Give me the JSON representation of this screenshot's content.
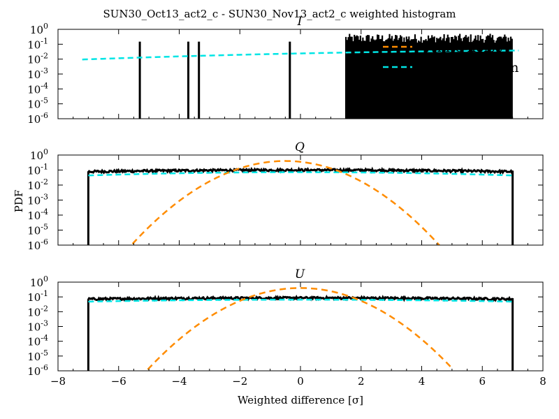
{
  "figure": {
    "suptitle": "SUN30_Oct13_act2_c - SUN30_Nov13_act2_c weighted histogram",
    "xlabel": "Weighted difference [σ]",
    "ylabel": "PDF"
  },
  "chart_data": [
    {
      "type": "line",
      "title": "I",
      "xlim": [
        -8,
        8
      ],
      "ylim": [
        1e-06,
        1
      ],
      "yscale": "log",
      "xticks": [
        "−8",
        "−6",
        "−4",
        "−2",
        "0",
        "2",
        "4",
        "6",
        "8"
      ],
      "yticks": [
        {
          "base": "10",
          "exp": "0"
        },
        {
          "base": "10",
          "exp": "-1"
        },
        {
          "base": "10",
          "exp": "-2"
        },
        {
          "base": "10",
          "exp": "-3"
        },
        {
          "base": "10",
          "exp": "-4"
        },
        {
          "base": "10",
          "exp": "-5"
        },
        {
          "base": "10",
          "exp": "-6"
        }
      ],
      "legend": {
        "position": "upper right",
        "entries": [
          "White noise",
          "Best Gaussian",
          "Data"
        ]
      },
      "series": [
        {
          "name": "Data",
          "color": "#000000",
          "kind": "spikes",
          "spike_height": 0.15,
          "spike_x": [
            -5.3,
            -3.7,
            -3.35,
            -0.35
          ],
          "dense_region": [
            1.5,
            7.0
          ]
        },
        {
          "name": "Best Gaussian",
          "color": "#00e5e5",
          "mu": 10.0,
          "sigma": 10.2,
          "xrange": [
            -7.2,
            7.2
          ]
        },
        {
          "name": "White noise",
          "color": "#ff8c00",
          "visible_in_panel": false
        }
      ]
    },
    {
      "type": "line",
      "title": "Q",
      "xlim": [
        -8,
        8
      ],
      "ylim": [
        1e-06,
        1
      ],
      "yscale": "log",
      "xticks": [
        "−8",
        "−6",
        "−4",
        "−2",
        "0",
        "2",
        "4",
        "6",
        "8"
      ],
      "yticks": [
        {
          "base": "10",
          "exp": "0"
        },
        {
          "base": "10",
          "exp": "-1"
        },
        {
          "base": "10",
          "exp": "-2"
        },
        {
          "base": "10",
          "exp": "-3"
        },
        {
          "base": "10",
          "exp": "-4"
        },
        {
          "base": "10",
          "exp": "-5"
        },
        {
          "base": "10",
          "exp": "-6"
        }
      ],
      "series": [
        {
          "name": "Data",
          "color": "#000000",
          "kind": "noisy",
          "mu": 0.0,
          "sigma": 10.0,
          "peak": 0.1,
          "xrange": [
            -7.0,
            7.0
          ]
        },
        {
          "name": "Best Gaussian",
          "color": "#00e5e5",
          "mu": 0.0,
          "sigma": 7.0,
          "peak": 0.072,
          "xrange": [
            -7.0,
            7.0
          ]
        },
        {
          "name": "White noise",
          "color": "#ff8c00",
          "mu": -0.5,
          "sigma": 1.0,
          "peak": 0.4,
          "xrange": [
            -6.0,
            4.6
          ]
        }
      ]
    },
    {
      "type": "line",
      "title": "U",
      "xlim": [
        -8,
        8
      ],
      "ylim": [
        1e-06,
        1
      ],
      "yscale": "log",
      "xticks": [
        "−8",
        "−6",
        "−4",
        "−2",
        "0",
        "2",
        "4",
        "6",
        "8"
      ],
      "yticks": [
        {
          "base": "10",
          "exp": "0"
        },
        {
          "base": "10",
          "exp": "-1"
        },
        {
          "base": "10",
          "exp": "-2"
        },
        {
          "base": "10",
          "exp": "-3"
        },
        {
          "base": "10",
          "exp": "-4"
        },
        {
          "base": "10",
          "exp": "-5"
        },
        {
          "base": "10",
          "exp": "-6"
        }
      ],
      "series": [
        {
          "name": "Data",
          "color": "#000000",
          "kind": "noisy",
          "mu": 0.0,
          "sigma": 12.0,
          "peak": 0.085,
          "xrange": [
            -7.0,
            7.0
          ]
        },
        {
          "name": "Best Gaussian",
          "color": "#00e5e5",
          "mu": 0.0,
          "sigma": 9.0,
          "peak": 0.065,
          "xrange": [
            -7.0,
            7.0
          ]
        },
        {
          "name": "White noise",
          "color": "#ff8c00",
          "mu": 0.0,
          "sigma": 1.0,
          "peak": 0.4,
          "xrange": [
            -5.5,
            5.0
          ]
        }
      ]
    }
  ]
}
